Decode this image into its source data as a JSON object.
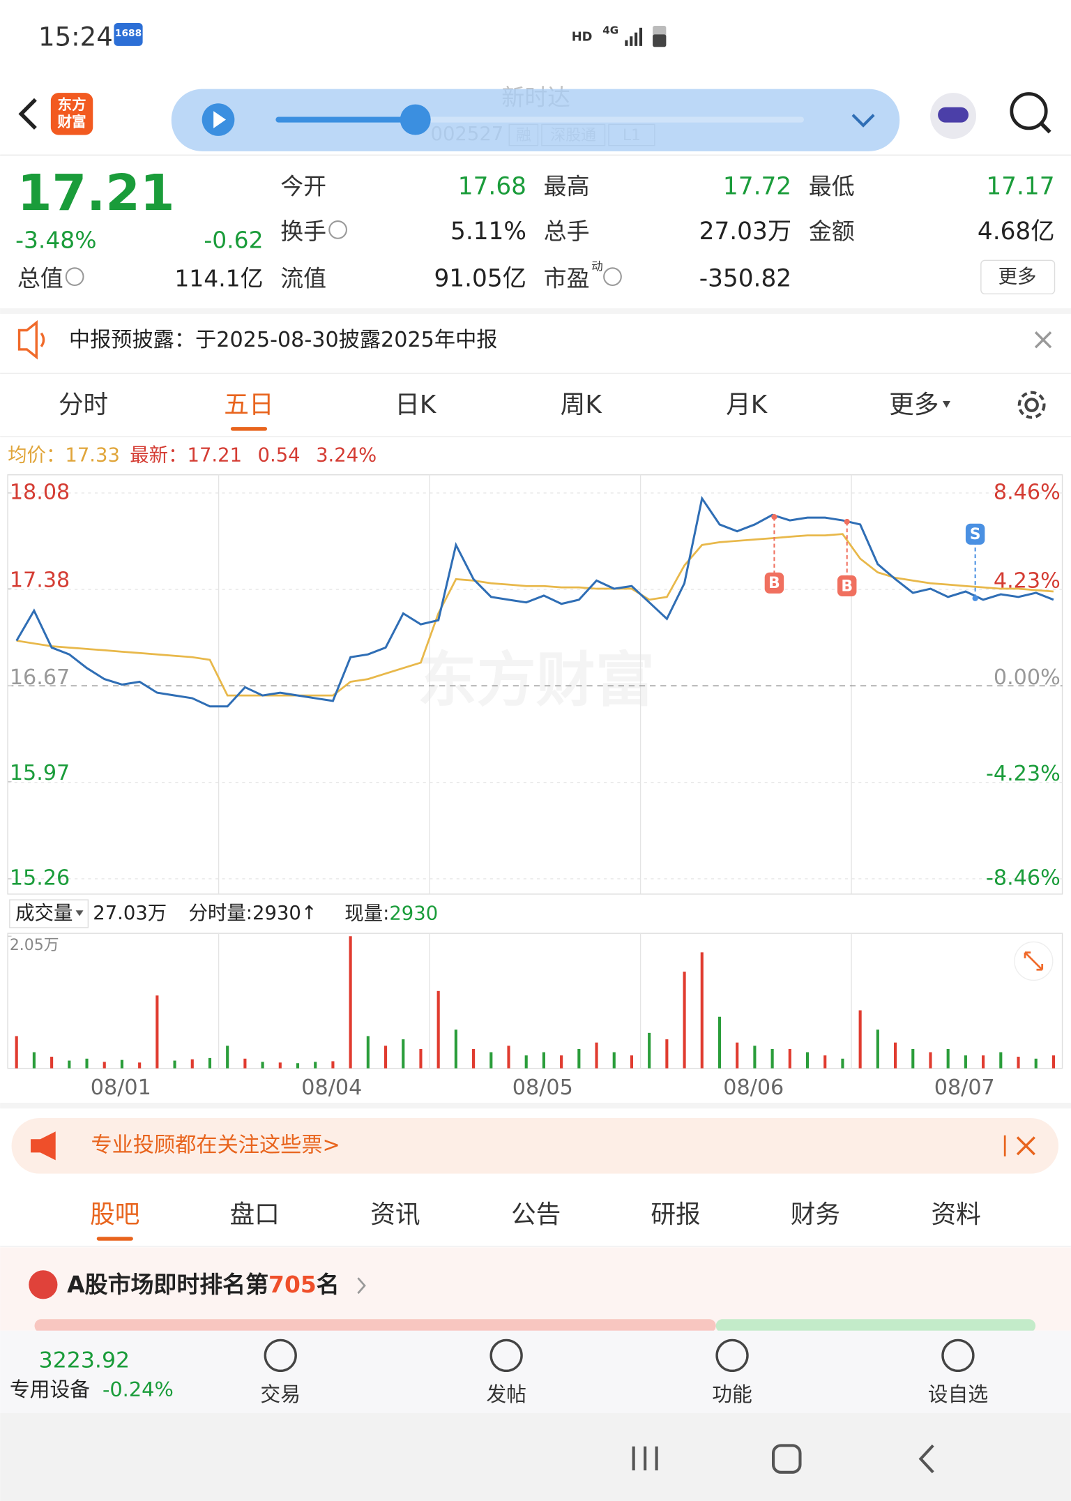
{
  "status_bar": {
    "time": "15:24",
    "badge": "1688",
    "network": "HD",
    "signal": "4G"
  },
  "header": {
    "logo": [
      "东方",
      "财富"
    ],
    "stock_name": "新时达",
    "code": "002527",
    "tags": [
      "融",
      "深股通",
      "L1"
    ]
  },
  "quote": {
    "price": "17.21",
    "change_pct": "-3.48%",
    "change": "-0.62",
    "market_cap_label": "总值",
    "market_cap": "114.1亿",
    "fields": [
      {
        "label": "今开",
        "value": "17.68",
        "color": "#1a9c3a"
      },
      {
        "label": "最高",
        "value": "17.72",
        "color": "#1a9c3a"
      },
      {
        "label": "最低",
        "value": "17.17",
        "color": "#1a9c3a"
      },
      {
        "label": "换手",
        "value": "5.11%",
        "color": "#222222",
        "info": true
      },
      {
        "label": "总手",
        "value": "27.03万",
        "color": "#222222"
      },
      {
        "label": "金额",
        "value": "4.68亿",
        "color": "#222222"
      },
      {
        "label": "流值",
        "value": "91.05亿",
        "color": "#222222"
      },
      {
        "label": "市盈",
        "sup": "动",
        "value": "-350.82",
        "color": "#222222",
        "info": true
      }
    ],
    "more": "更多"
  },
  "notice": {
    "text": "中报预披露：于2025-08-30披露2025年中报"
  },
  "tabs": {
    "items": [
      "分时",
      "五日",
      "日K",
      "周K",
      "月K",
      "更多"
    ],
    "active": 1
  },
  "legend": {
    "avg_label": "均价：",
    "avg": "17.33",
    "last_label": "最新：",
    "last": "17.21",
    "change": "0.54",
    "change_pct": "3.24%"
  },
  "chart": {
    "type": "line",
    "watermark": "东方财富",
    "categories": [
      "08/01",
      "08/04",
      "08/05",
      "08/06",
      "08/07"
    ],
    "ylim": [
      15.26,
      18.08
    ],
    "yticks": [
      18.08,
      17.38,
      16.67,
      15.97,
      15.26
    ],
    "y2lim": [
      -8.46,
      8.46
    ],
    "y2ticks": [
      {
        "value": 8.46,
        "label": "8.46%"
      },
      {
        "value": 4.23,
        "label": "4.23%"
      },
      {
        "value": 0,
        "label": "0.00%"
      },
      {
        "value": -4.23,
        "label": "-4.23%"
      },
      {
        "value": -8.46,
        "label": "-8.46%"
      }
    ],
    "up_color": "#d43c33",
    "down_color": "#1a9c3a",
    "series": [
      {
        "color": "#2f6eb5",
        "values": [
          17.0,
          17.22,
          16.95,
          16.9,
          16.8,
          16.72,
          16.68,
          16.7,
          16.62,
          16.6,
          16.58,
          16.52,
          16.52,
          16.66,
          16.6,
          16.62,
          16.6,
          16.58,
          16.56,
          16.88,
          16.9,
          16.95,
          17.2,
          17.12,
          17.15,
          17.7,
          17.45,
          17.32,
          17.3,
          17.28,
          17.33,
          17.27,
          17.3,
          17.44,
          17.38,
          17.4,
          17.28,
          17.16,
          17.42,
          18.04,
          17.85,
          17.8,
          17.85,
          17.92,
          17.88,
          17.9,
          17.9,
          17.88,
          17.85,
          17.56,
          17.45,
          17.35,
          17.38,
          17.32,
          17.36,
          17.3,
          17.34,
          17.32,
          17.35,
          17.3
        ]
      },
      {
        "color": "#e8b84a",
        "values": [
          17.0,
          16.98,
          16.96,
          16.95,
          16.94,
          16.93,
          16.92,
          16.91,
          16.9,
          16.89,
          16.88,
          16.86,
          16.6,
          16.6,
          16.6,
          16.6,
          16.6,
          16.6,
          16.6,
          16.7,
          16.72,
          16.76,
          16.8,
          16.84,
          17.2,
          17.45,
          17.44,
          17.42,
          17.41,
          17.4,
          17.4,
          17.39,
          17.39,
          17.38,
          17.38,
          17.38,
          17.3,
          17.32,
          17.55,
          17.7,
          17.72,
          17.73,
          17.74,
          17.75,
          17.76,
          17.77,
          17.77,
          17.78,
          17.6,
          17.5,
          17.46,
          17.44,
          17.42,
          17.41,
          17.4,
          17.39,
          17.38,
          17.38,
          17.37,
          17.36
        ]
      }
    ],
    "markers": [
      {
        "label": "B",
        "color": "#f0705f"
      },
      {
        "label": "B",
        "color": "#f0705f"
      },
      {
        "label": "S",
        "color": "#4a90e2"
      }
    ]
  },
  "volume": {
    "label": "成交量",
    "total": "27.03万",
    "tick_volume": "分时量:2930↑",
    "current_label": "现量:",
    "current": "2930",
    "ylim": [
      0,
      20500
    ],
    "yticks": [
      {
        "value": 20500,
        "label": "2.05万"
      }
    ],
    "values": [
      5000,
      2500,
      1800,
      1200,
      1500,
      1000,
      1300,
      900,
      11300,
      1200,
      1400,
      1600,
      3500,
      1500,
      1000,
      900,
      800,
      1000,
      1100,
      20500,
      5000,
      3500,
      4500,
      3000,
      12000,
      6000,
      3000,
      2500,
      3500,
      2000,
      2500,
      2000,
      3000,
      4000,
      2500,
      2000,
      5500,
      4500,
      15000,
      18000,
      8000,
      4000,
      3500,
      3000,
      3000,
      2500,
      2000,
      1500,
      9000,
      6000,
      4000,
      3000,
      2500,
      3000,
      2000,
      2000,
      2500,
      1800,
      1500,
      2000
    ],
    "colors": [
      "#e03b2f",
      "#2a9d3a",
      "#e03b2f",
      "#2a9d3a",
      "#2a9d3a",
      "#e03b2f",
      "#2a9d3a",
      "#e03b2f",
      "#e03b2f",
      "#2a9d3a",
      "#e03b2f",
      "#2a9d3a",
      "#2a9d3a",
      "#e03b2f",
      "#2a9d3a",
      "#e03b2f",
      "#2a9d3a",
      "#2a9d3a",
      "#e03b2f",
      "#e03b2f",
      "#2a9d3a",
      "#e03b2f",
      "#2a9d3a",
      "#e03b2f",
      "#e03b2f",
      "#2a9d3a",
      "#e03b2f",
      "#2a9d3a",
      "#e03b2f",
      "#2a9d3a",
      "#2a9d3a",
      "#e03b2f",
      "#2a9d3a",
      "#e03b2f",
      "#2a9d3a",
      "#e03b2f",
      "#2a9d3a",
      "#e03b2f",
      "#e03b2f",
      "#e03b2f",
      "#2a9d3a",
      "#e03b2f",
      "#2a9d3a",
      "#2a9d3a",
      "#e03b2f",
      "#2a9d3a",
      "#e03b2f",
      "#2a9d3a",
      "#e03b2f",
      "#2a9d3a",
      "#e03b2f",
      "#2a9d3a",
      "#e03b2f",
      "#2a9d3a",
      "#2a9d3a",
      "#e03b2f",
      "#2a9d3a",
      "#e03b2f",
      "#2a9d3a",
      "#e03b2f"
    ]
  },
  "banner": {
    "text": "专业投顾都在关注这些票>"
  },
  "sections": {
    "items": [
      "股吧",
      "盘口",
      "资讯",
      "公告",
      "研报",
      "财务",
      "资料"
    ],
    "active": 0
  },
  "rank": {
    "prefix": "A股市场即时排名第",
    "rank": "705",
    "suffix": "名"
  },
  "bottom_nav": {
    "index_value": "3223.92",
    "sector": "专用设备",
    "sector_change": "-0.24%",
    "items": [
      "交易",
      "发帖",
      "功能",
      "设自选"
    ]
  }
}
